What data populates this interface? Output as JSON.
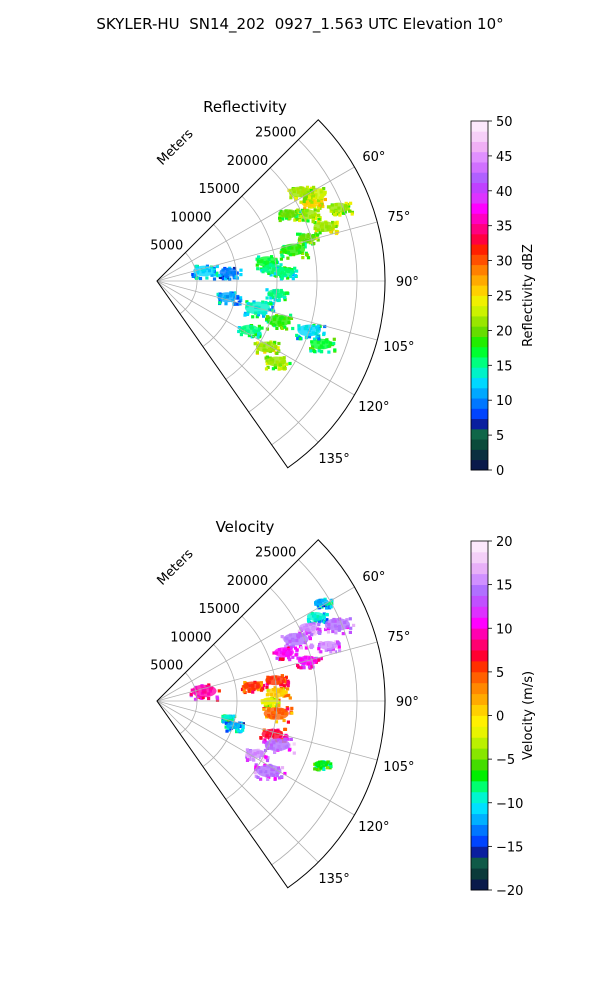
{
  "figure": {
    "title": "SKYLER-HU  SN14_202  0927_1.563 UTC Elevation 10°"
  },
  "chart_data": [
    {
      "type": "heatmap",
      "subtype": "polar-ppi",
      "title": "Reflectivity",
      "radial_label": "Meters",
      "radial_ticks": [
        5000,
        10000,
        15000,
        20000,
        25000
      ],
      "radial_tick_labels": [
        "5000",
        "10000",
        "15000",
        "20000",
        "25000"
      ],
      "rmax": 28500,
      "azimuth_range": [
        45,
        145
      ],
      "azimuth_ticks": [
        60,
        75,
        90,
        105,
        120,
        135
      ],
      "azimuth_tick_labels": [
        "60°",
        "75°",
        "90°",
        "105°",
        "120°",
        "135°"
      ],
      "grid": true,
      "colorbar": {
        "label": "Reflectivity dBZ",
        "range": [
          0,
          50
        ],
        "ticks": [
          0,
          5,
          10,
          15,
          20,
          25,
          30,
          35,
          40,
          45,
          50
        ],
        "tick_labels": [
          "0",
          "5",
          "10",
          "15",
          "20",
          "25",
          "30",
          "35",
          "40",
          "45",
          "50"
        ]
      },
      "regions": [
        {
          "az": 63,
          "r": 21500,
          "value": 25
        },
        {
          "az": 61,
          "r": 22500,
          "value": 23
        },
        {
          "az": 58,
          "r": 21000,
          "value": 22
        },
        {
          "az": 66,
          "r": 20500,
          "value": 21
        },
        {
          "az": 63,
          "r": 18500,
          "value": 20
        },
        {
          "az": 68,
          "r": 24500,
          "value": 21
        },
        {
          "az": 72,
          "r": 22000,
          "value": 22
        },
        {
          "az": 74,
          "r": 19500,
          "value": 20
        },
        {
          "az": 77,
          "r": 17500,
          "value": 18
        },
        {
          "az": 80,
          "r": 14000,
          "value": 17
        },
        {
          "az": 84,
          "r": 14500,
          "value": 16
        },
        {
          "az": 86,
          "r": 16000,
          "value": 15
        },
        {
          "az": 78,
          "r": 6000,
          "value": 12
        },
        {
          "az": 83,
          "r": 9000,
          "value": 10
        },
        {
          "az": 96,
          "r": 15000,
          "value": 15
        },
        {
          "az": 103,
          "r": 9000,
          "value": 11
        },
        {
          "az": 105,
          "r": 13000,
          "value": 14
        },
        {
          "az": 108,
          "r": 16000,
          "value": 18
        },
        {
          "az": 118,
          "r": 13000,
          "value": 16
        },
        {
          "az": 121,
          "r": 16000,
          "value": 22
        },
        {
          "az": 124,
          "r": 18000,
          "value": 21
        },
        {
          "az": 111,
          "r": 22000,
          "value": 17
        },
        {
          "az": 108,
          "r": 20000,
          "value": 13
        }
      ]
    },
    {
      "type": "heatmap",
      "subtype": "polar-ppi",
      "title": "Velocity",
      "radial_label": "Meters",
      "radial_ticks": [
        5000,
        10000,
        15000,
        20000,
        25000
      ],
      "radial_tick_labels": [
        "5000",
        "10000",
        "15000",
        "20000",
        "25000"
      ],
      "rmax": 28500,
      "azimuth_range": [
        45,
        145
      ],
      "azimuth_ticks": [
        60,
        75,
        90,
        105,
        120,
        135
      ],
      "azimuth_tick_labels": [
        "60°",
        "75°",
        "90°",
        "105°",
        "120°",
        "135°"
      ],
      "grid": true,
      "colorbar": {
        "label": "Velocity (m/s)",
        "range": [
          -20,
          20
        ],
        "ticks": [
          -20,
          -15,
          -10,
          -5,
          0,
          5,
          10,
          15,
          20
        ],
        "tick_labels": [
          "−20",
          "−15",
          "−10",
          "−5",
          "0",
          "5",
          "10",
          "15",
          "20"
        ]
      },
      "regions": [
        {
          "az": 59,
          "r": 24000,
          "value": -12
        },
        {
          "az": 62,
          "r": 22500,
          "value": -10
        },
        {
          "az": 64,
          "r": 21000,
          "value": 15
        },
        {
          "az": 66,
          "r": 19000,
          "value": 14
        },
        {
          "az": 69,
          "r": 17000,
          "value": 11
        },
        {
          "az": 67,
          "r": 24500,
          "value": 14
        },
        {
          "az": 72,
          "r": 22500,
          "value": 15
        },
        {
          "az": 75,
          "r": 19500,
          "value": 11
        },
        {
          "az": 78,
          "r": 6000,
          "value": 9
        },
        {
          "az": 81,
          "r": 12000,
          "value": 5
        },
        {
          "az": 80,
          "r": 15000,
          "value": 6
        },
        {
          "az": 86,
          "r": 15000,
          "value": 1
        },
        {
          "az": 90,
          "r": 14000,
          "value": -2
        },
        {
          "az": 96,
          "r": 15000,
          "value": 4
        },
        {
          "az": 103,
          "r": 9000,
          "value": -9
        },
        {
          "az": 108,
          "r": 10000,
          "value": -12
        },
        {
          "az": 106,
          "r": 15000,
          "value": 7
        },
        {
          "az": 110,
          "r": 16000,
          "value": 14
        },
        {
          "az": 118,
          "r": 14000,
          "value": 15
        },
        {
          "az": 122,
          "r": 16500,
          "value": 14
        },
        {
          "az": 111,
          "r": 22000,
          "value": -7
        }
      ]
    }
  ]
}
